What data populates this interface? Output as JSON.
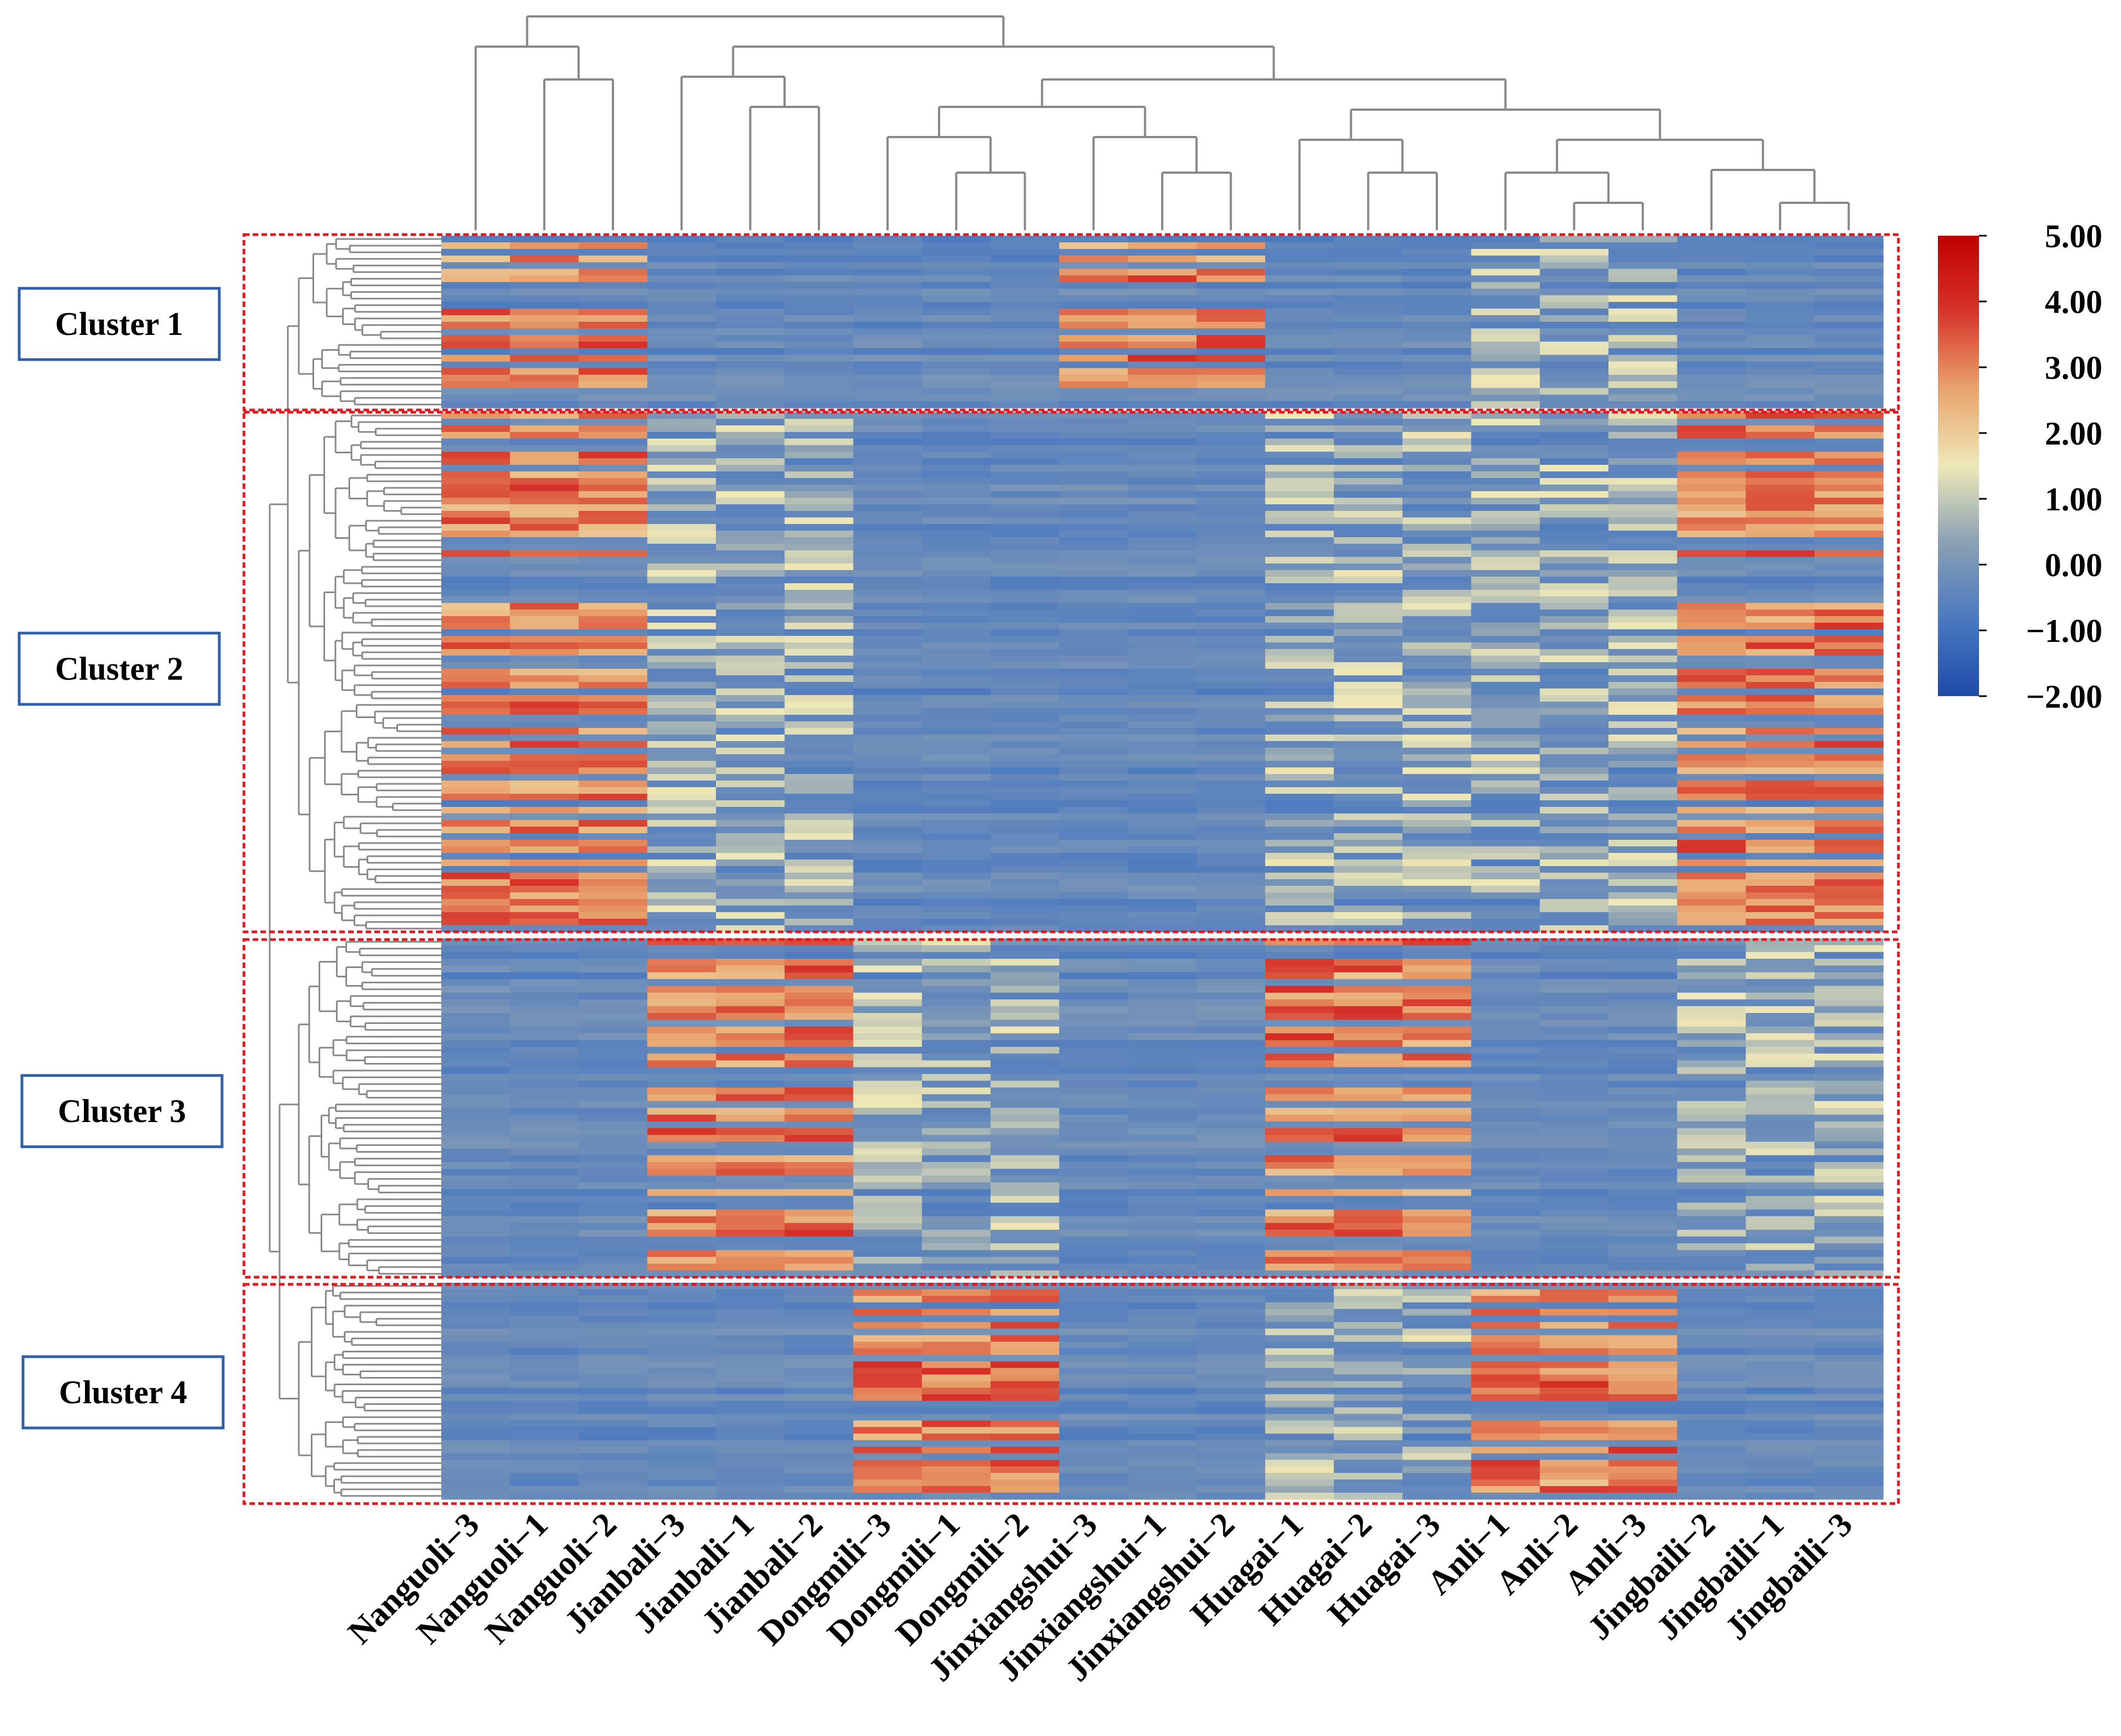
{
  "chart_data": {
    "type": "heatmap",
    "title": "",
    "columns": [
      "Nanguoli−3",
      "Nanguoli−1",
      "Nanguoli−2",
      "Jianbali−3",
      "Jianbali−1",
      "Jianbali−2",
      "Dongmili−3",
      "Dongmili−1",
      "Dongmili−2",
      "Jinxiangshui−3",
      "Jinxiangshui−1",
      "Jinxiangshui−2",
      "Huagai−1",
      "Huagai−2",
      "Huagai−3",
      "Anli−1",
      "Anli−2",
      "Anli−3",
      "Jingbaili−2",
      "Jingbaili−1",
      "Jingbaili−3"
    ],
    "groups": [
      "Nanguoli",
      "Jianbali",
      "Dongmili",
      "Jinxiangshui",
      "Huagai",
      "Anli",
      "Jingbaili"
    ],
    "clusters": [
      {
        "label": "Cluster 1",
        "rows": 26,
        "high_groups": [
          "Nanguoli",
          "Jinxiangshui"
        ],
        "medium_groups": [
          "Anli"
        ]
      },
      {
        "label": "Cluster 2",
        "rows": 79,
        "high_groups": [
          "Nanguoli",
          "Jingbaili"
        ],
        "medium_groups": [
          "Jianbali",
          "Huagai",
          "Anli"
        ]
      },
      {
        "label": "Cluster 3",
        "rows": 50,
        "high_groups": [
          "Jianbali",
          "Huagai"
        ],
        "medium_groups": [
          "Dongmili",
          "Jingbaili"
        ]
      },
      {
        "label": "Cluster 4",
        "rows": 33,
        "high_groups": [
          "Dongmili",
          "Anli"
        ],
        "medium_groups": [
          "Huagai"
        ]
      }
    ],
    "colorbar": {
      "min": -2.0,
      "max": 5.0,
      "ticks": [
        "5.00",
        "4.00",
        "3.00",
        "2.00",
        "1.00",
        "0.00",
        "−1.00",
        "−2.00"
      ],
      "colors": [
        "#1f4aa8",
        "#4a78c0",
        "#8aa0b4",
        "#eee8b8",
        "#e9a46e",
        "#d6342a",
        "#c00000"
      ]
    }
  }
}
